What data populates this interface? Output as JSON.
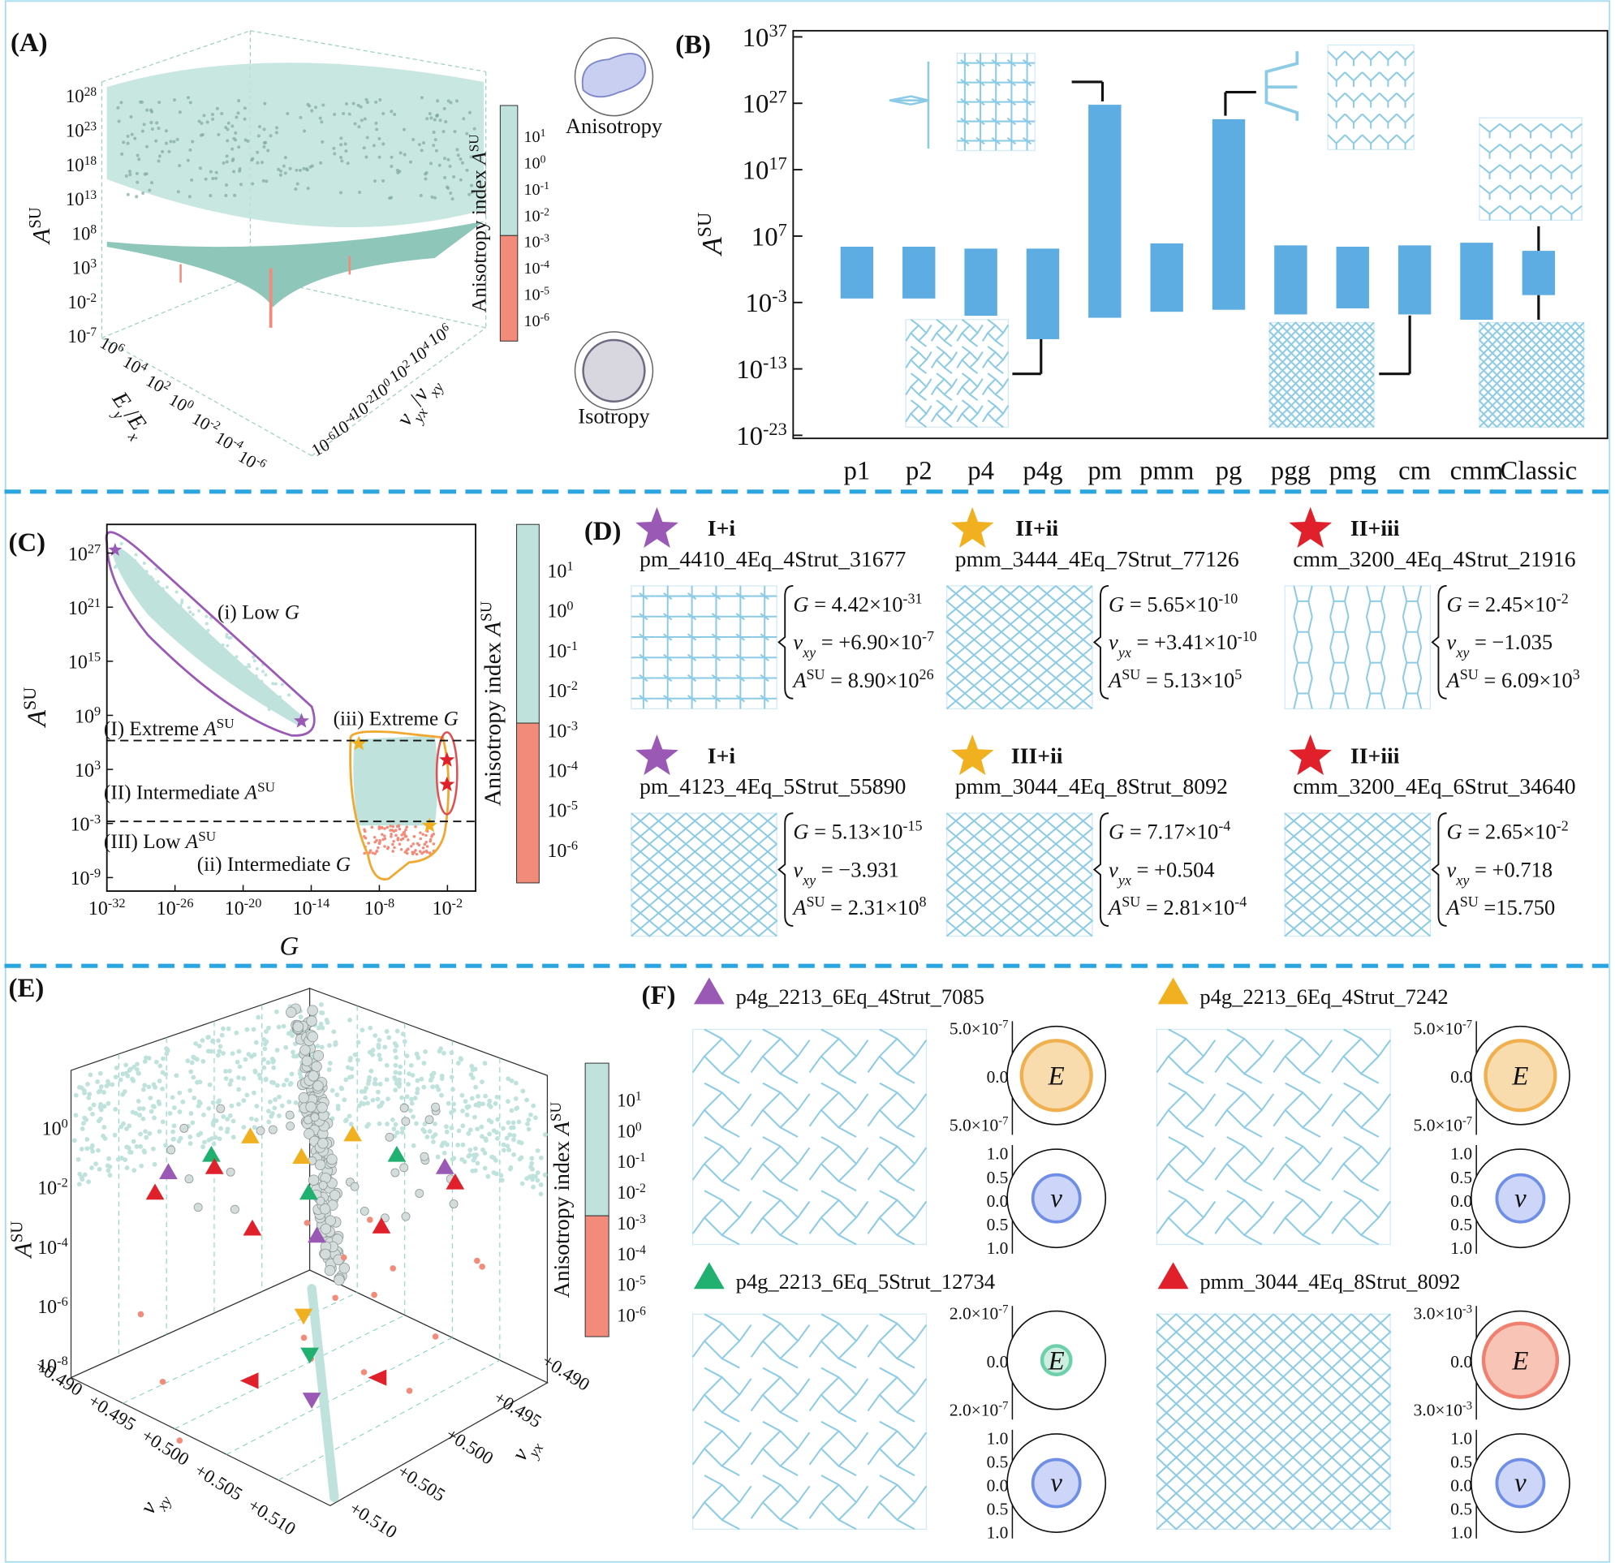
{
  "colorbar": {
    "title": [
      "Anisotropy index ",
      {
        "i": "A"
      },
      {
        "sup": "SU"
      }
    ],
    "ticks": [
      [
        "10",
        {
          "sup": "1"
        }
      ],
      [
        "10",
        {
          "sup": "0"
        }
      ],
      [
        "10",
        {
          "sup": "-1"
        }
      ],
      [
        "10",
        {
          "sup": "-2"
        }
      ],
      [
        "10",
        {
          "sup": "-3"
        }
      ],
      [
        "10",
        {
          "sup": "-4"
        }
      ],
      [
        "10",
        {
          "sup": "-5"
        }
      ],
      [
        "10",
        {
          "sup": "-6"
        }
      ]
    ],
    "upper_color": "#bfe3dc",
    "lower_color": "#f28b7a"
  },
  "panel_a": {
    "label": "(A)",
    "z_axis_label": [
      {
        "i": "A"
      },
      {
        "sup": "SU"
      }
    ],
    "z_ticks": [
      [
        "10",
        {
          "sup": "28"
        }
      ],
      [
        "10",
        {
          "sup": "23"
        }
      ],
      [
        "10",
        {
          "sup": "18"
        }
      ],
      [
        "10",
        {
          "sup": "13"
        }
      ],
      [
        "10",
        {
          "sup": "8"
        }
      ],
      [
        "10",
        {
          "sup": "3"
        }
      ],
      [
        "10",
        {
          "sup": "-2"
        }
      ],
      [
        "10",
        {
          "sup": "-7"
        }
      ]
    ],
    "x_axis_label": [
      {
        "i": "E"
      },
      {
        "sub": "y"
      },
      "/",
      {
        "i": "E"
      },
      {
        "sub": "x"
      }
    ],
    "x_ticks": [
      [
        "10",
        {
          "sup": "6"
        }
      ],
      [
        "10",
        {
          "sup": "4"
        }
      ],
      [
        "10",
        {
          "sup": "2"
        }
      ],
      [
        "10",
        {
          "sup": "0"
        }
      ],
      [
        "10",
        {
          "sup": "-2"
        }
      ],
      [
        "10",
        {
          "sup": "-4"
        }
      ],
      [
        "10",
        {
          "sup": "-6"
        }
      ]
    ],
    "y_axis_label": [
      {
        "i": "ν"
      },
      {
        "sub": "yx"
      },
      "/",
      {
        "i": "ν"
      },
      {
        "sub": "xy"
      }
    ],
    "y_ticks": [
      [
        "10",
        {
          "sup": "6"
        }
      ],
      [
        "10",
        {
          "sup": "4"
        }
      ],
      [
        "10",
        {
          "sup": "2"
        }
      ],
      [
        "10",
        {
          "sup": "0"
        }
      ],
      [
        "10",
        {
          "sup": "-2"
        }
      ],
      [
        "10",
        {
          "sup": "-4"
        }
      ],
      [
        "10",
        {
          "sup": "-6"
        }
      ]
    ],
    "icons": [
      "Anisotropy",
      "Isotropy"
    ]
  },
  "chart_data": {
    "type": "floating_bar",
    "label": "(B)",
    "y_label": [
      {
        "i": "A"
      },
      {
        "sup": "SU"
      }
    ],
    "categories": [
      "p1",
      "p2",
      "p4",
      "p4g",
      "pm",
      "pmm",
      "pg",
      "pgg",
      "pmg",
      "cm",
      "cmm",
      "Classic"
    ],
    "ranges": [
      [
        0.004,
        250000.0
      ],
      [
        0.004,
        250000.0
      ],
      [
        1e-05,
        130000.0
      ],
      [
        3e-09,
        130000.0
      ],
      [
        5e-06,
        6e+26
      ],
      [
        4e-05,
        800000.0
      ],
      [
        8e-05,
        4e+24
      ],
      [
        1.6e-05,
        400000.0
      ],
      [
        0.00013,
        250000.0
      ],
      [
        1.6e-05,
        400000.0
      ],
      [
        2.5e-06,
        1000000.0
      ],
      [
        0.013,
        60000.0
      ]
    ],
    "whiskers": [
      null,
      null,
      null,
      null,
      null,
      null,
      null,
      null,
      null,
      null,
      null,
      [
        2.5e-06,
        300000000.0
      ]
    ],
    "color": "#5dade2",
    "log_scale": true,
    "ylim": [
      1e-23,
      1e+37
    ],
    "yticks": [
      {
        "value": 1e+37,
        "label": [
          "10",
          {
            "sup": "37"
          }
        ]
      },
      {
        "value": 1e+27,
        "label": [
          "10",
          {
            "sup": "27"
          }
        ]
      },
      {
        "value": 1e+17,
        "label": [
          "10",
          {
            "sup": "17"
          }
        ]
      },
      {
        "value": 10000000.0,
        "label": [
          "10",
          {
            "sup": "7"
          }
        ]
      },
      {
        "value": 0.001,
        "label": [
          "10",
          {
            "sup": "-3"
          }
        ]
      },
      {
        "value": 1e-13,
        "label": [
          "10",
          {
            "sup": "-13"
          }
        ]
      },
      {
        "value": 1e-23,
        "label": [
          "10",
          {
            "sup": "-23"
          }
        ]
      }
    ]
  },
  "panel_c": {
    "label": "(C)",
    "y_axis_label": [
      {
        "i": "A"
      },
      {
        "sup": "SU"
      }
    ],
    "x_axis_label": [
      {
        "i": "G"
      }
    ],
    "y_ticks": [
      [
        "10",
        {
          "sup": "27"
        }
      ],
      [
        "10",
        {
          "sup": "21"
        }
      ],
      [
        "10",
        {
          "sup": "15"
        }
      ],
      [
        "10",
        {
          "sup": "9"
        }
      ],
      [
        "10",
        {
          "sup": "3"
        }
      ],
      [
        "10",
        {
          "sup": "-3"
        }
      ],
      [
        "10",
        {
          "sup": "-9"
        }
      ]
    ],
    "x_ticks": [
      [
        "10",
        {
          "sup": "-32"
        }
      ],
      [
        "10",
        {
          "sup": "-26"
        }
      ],
      [
        "10",
        {
          "sup": "-20"
        }
      ],
      [
        "10",
        {
          "sup": "-14"
        }
      ],
      [
        "10",
        {
          "sup": "-8"
        }
      ],
      [
        "10",
        {
          "sup": "-2"
        }
      ]
    ],
    "regions": [
      [
        "(I) Extreme ",
        {
          "i": "A"
        },
        {
          "sup": "SU"
        }
      ],
      [
        "(II) Intermediate ",
        {
          "i": "A"
        },
        {
          "sup": "SU"
        }
      ],
      [
        "(III) Low ",
        {
          "i": "A"
        },
        {
          "sup": "SU"
        }
      ]
    ],
    "groups": [
      [
        "(i) Low ",
        {
          "i": "G"
        }
      ],
      [
        "(ii) Intermediate ",
        {
          "i": "G"
        }
      ],
      [
        "(iii) Extreme ",
        {
          "i": "G"
        }
      ]
    ],
    "group_colors": [
      "#9b59b6",
      "#f0a830",
      "#e05050"
    ]
  },
  "panel_d": {
    "label": "(D)",
    "cells": [
      {
        "tag": "I+i",
        "color": "#9b59b6",
        "name": "pm_4410_4Eq_4Strut_31677",
        "props": [
          [
            {
              "i": "G"
            },
            " = 4.42×10",
            {
              "sup": "-31"
            }
          ],
          [
            {
              "i": "ν"
            },
            {
              "sub": "xy"
            },
            " = +6.90×10",
            {
              "sup": "-7"
            }
          ],
          [
            {
              "i": "A"
            },
            {
              "sup": "SU"
            },
            " = 8.90×10",
            {
              "sup": "26"
            }
          ]
        ]
      },
      {
        "tag": "II+ii",
        "color": "#f0b020",
        "name": "pmm_3444_4Eq_7Strut_77126",
        "props": [
          [
            {
              "i": "G"
            },
            " = 5.65×10",
            {
              "sup": "-10"
            }
          ],
          [
            {
              "i": "ν"
            },
            {
              "sub": "yx"
            },
            " = +3.41×10",
            {
              "sup": "-10"
            }
          ],
          [
            {
              "i": "A"
            },
            {
              "sup": "SU"
            },
            " = 5.13×10",
            {
              "sup": "5"
            }
          ]
        ]
      },
      {
        "tag": "II+iii",
        "color": "#e0202a",
        "name": "cmm_3200_4Eq_4Strut_21916",
        "props": [
          [
            {
              "i": "G"
            },
            " = 2.45×10",
            {
              "sup": "-2"
            }
          ],
          [
            {
              "i": "ν"
            },
            {
              "sub": "xy"
            },
            " = −1.035"
          ],
          [
            {
              "i": "A"
            },
            {
              "sup": "SU"
            },
            " = 6.09×10",
            {
              "sup": "3"
            }
          ]
        ]
      },
      {
        "tag": "I+i",
        "color": "#9b59b6",
        "name": "pm_4123_4Eq_5Strut_55890",
        "props": [
          [
            {
              "i": "G"
            },
            " = 5.13×10",
            {
              "sup": "-15"
            }
          ],
          [
            {
              "i": "ν"
            },
            {
              "sub": "xy"
            },
            " = −3.931"
          ],
          [
            {
              "i": "A"
            },
            {
              "sup": "SU"
            },
            " = 2.31×10",
            {
              "sup": "8"
            }
          ]
        ]
      },
      {
        "tag": "III+ii",
        "color": "#f0b020",
        "name": "pmm_3044_4Eq_8Strut_8092",
        "props": [
          [
            {
              "i": "G"
            },
            " = 7.17×10",
            {
              "sup": "-4"
            }
          ],
          [
            {
              "i": "ν"
            },
            {
              "sub": "yx"
            },
            " = +0.504"
          ],
          [
            {
              "i": "A"
            },
            {
              "sup": "SU"
            },
            " = 2.81×10",
            {
              "sup": "-4"
            }
          ]
        ]
      },
      {
        "tag": "II+iii",
        "color": "#e0202a",
        "name": "cmm_3200_4Eq_6Strut_34640",
        "props": [
          [
            {
              "i": "G"
            },
            " = 2.65×10",
            {
              "sup": "-2"
            }
          ],
          [
            {
              "i": "ν"
            },
            {
              "sub": "xy"
            },
            " = +0.718"
          ],
          [
            {
              "i": "A"
            },
            {
              "sup": "SU"
            },
            " =15.750"
          ]
        ]
      }
    ]
  },
  "panel_e": {
    "label": "(E)",
    "z_axis_label": [
      {
        "i": "A"
      },
      {
        "sup": "SU"
      }
    ],
    "z_ticks": [
      [
        "10",
        {
          "sup": "0"
        }
      ],
      [
        "10",
        {
          "sup": "-2"
        }
      ],
      [
        "10",
        {
          "sup": "-4"
        }
      ],
      [
        "10",
        {
          "sup": "-6"
        }
      ],
      [
        "10",
        {
          "sup": "-8"
        }
      ]
    ],
    "x_axis_label": [
      {
        "i": "ν"
      },
      {
        "sub": "xy"
      }
    ],
    "x_ticks": [
      "+0.490",
      "+0.495",
      "+0.500",
      "+0.505",
      "+0.510"
    ],
    "y_axis_label": [
      {
        "i": "ν"
      },
      {
        "sub": "yx"
      }
    ],
    "y_ticks": [
      "+0.490",
      "+0.495",
      "+0.500",
      "+0.505",
      "+0.510"
    ]
  },
  "panel_f": {
    "label": "(F)",
    "e_symbol": "E",
    "nu_symbol": "ν",
    "cells": [
      {
        "name": "p4g_2213_6Eq_4Strut_7085",
        "color": "#9b59b6",
        "e_fill": "#f8dcae",
        "e_stroke": "#f0b050",
        "e_ticks": [
          [
            "5.0×10",
            {
              "sup": "-7"
            }
          ],
          "0.0",
          [
            "5.0×10",
            {
              "sup": "-7"
            }
          ]
        ],
        "nu_ticks": [
          "1.0",
          "0.5",
          "0.0",
          "0.5",
          "1.0"
        ]
      },
      {
        "name": "p4g_2213_6Eq_4Strut_7242",
        "color": "#f0b020",
        "e_fill": "#f8dcae",
        "e_stroke": "#f0b050",
        "e_ticks": [
          [
            "5.0×10",
            {
              "sup": "-7"
            }
          ],
          "0.0",
          [
            "5.0×10",
            {
              "sup": "-7"
            }
          ]
        ],
        "nu_ticks": [
          "1.0",
          "0.5",
          "0.0",
          "0.5",
          "1.0"
        ]
      },
      {
        "name": "p4g_2213_6Eq_5Strut_12734",
        "color": "#20b070",
        "e_fill": "#cdeee0",
        "e_stroke": "#6cd0a8",
        "e_ticks": [
          [
            "2.0×10",
            {
              "sup": "-7"
            }
          ],
          "0.0",
          [
            "2.0×10",
            {
              "sup": "-7"
            }
          ]
        ],
        "nu_ticks": [
          "1.0",
          "0.5",
          "0.0",
          "0.5",
          "1.0"
        ]
      },
      {
        "name": "pmm_3044_4Eq_8Strut_8092",
        "color": "#e0202a",
        "e_fill": "#f8c4b6",
        "e_stroke": "#f08070",
        "e_ticks": [
          [
            "3.0×10",
            {
              "sup": "-3"
            }
          ],
          "0.0",
          [
            "3.0×10",
            {
              "sup": "-3"
            }
          ]
        ],
        "nu_ticks": [
          "1.0",
          "0.5",
          "0.0",
          "0.5",
          "1.0"
        ]
      }
    ]
  }
}
